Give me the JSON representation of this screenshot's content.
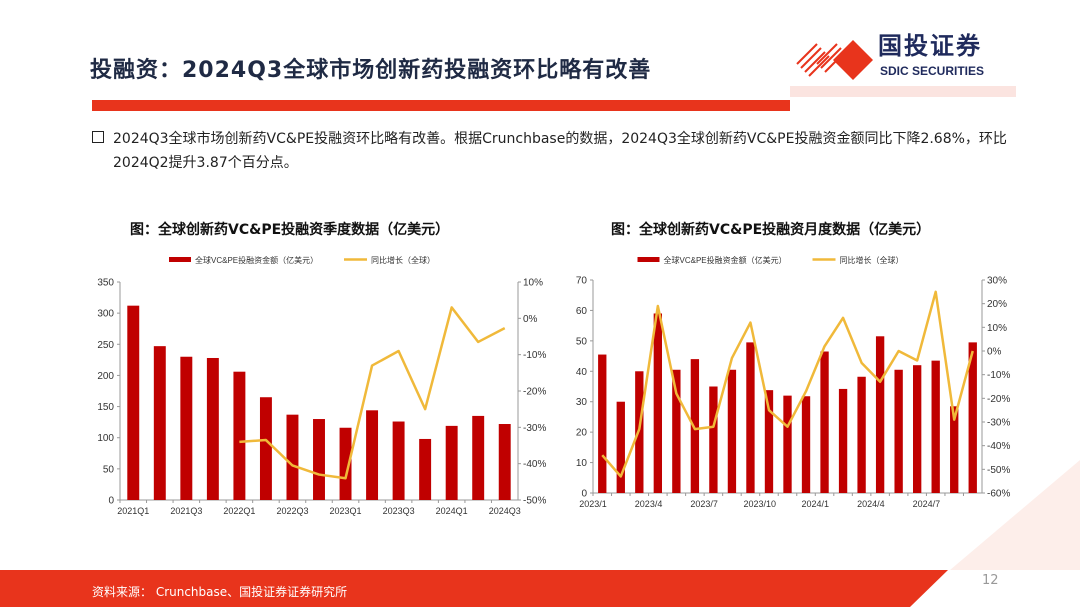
{
  "header": {
    "title": "投融资：2024Q3全球市场创新药投融资环比略有改善",
    "logo_cn": "国投证券",
    "logo_en": "SDIC SECURITIES"
  },
  "colors": {
    "accent": "#e8341c",
    "bar": "#c00000",
    "line": "#f0b93a",
    "title": "#1f2a44"
  },
  "summary": "2024Q3全球市场创新药VC&PE投融资环比略有改善。根据Crunchbase的数据，2024Q3全球创新药VC&PE投融资金额同比下降2.68%，环比2024Q2提升3.87个百分点。",
  "chart_data": [
    {
      "type": "bar+line",
      "title": "图：全球创新药VC&PE投融资季度数据（亿美元）",
      "categories": [
        "2021Q1",
        "2021Q2",
        "2021Q3",
        "2021Q4",
        "2022Q1",
        "2022Q2",
        "2022Q3",
        "2022Q4",
        "2023Q1",
        "2023Q2",
        "2023Q3",
        "2023Q4",
        "2024Q1",
        "2024Q2",
        "2024Q3"
      ],
      "xtick_labels": [
        "2021Q1",
        "",
        "2021Q3",
        "",
        "2022Q1",
        "",
        "2022Q3",
        "",
        "2023Q1",
        "",
        "2023Q3",
        "",
        "2024Q1",
        "",
        "2024Q3"
      ],
      "series": [
        {
          "name": "全球VC&PE投融资金额（亿美元）",
          "type": "bar",
          "axis": "left",
          "values": [
            312,
            247,
            230,
            228,
            206,
            165,
            137,
            130,
            116,
            144,
            126,
            98,
            119,
            135,
            122
          ]
        },
        {
          "name": "同比增长（全球）",
          "type": "line",
          "axis": "right",
          "values": [
            null,
            null,
            null,
            null,
            -34,
            -33.5,
            -40.5,
            -43,
            -44,
            -13,
            -9,
            -25,
            3,
            -6.5,
            -2.7
          ]
        }
      ],
      "ylim_left": [
        0,
        350
      ],
      "yticks_left": [
        "0",
        "50",
        "100",
        "150",
        "200",
        "250",
        "300",
        "350"
      ],
      "ylim_right": [
        -50,
        10
      ],
      "yticks_right": [
        "-50%",
        "-40%",
        "-30%",
        "-20%",
        "-10%",
        "0%",
        "10%"
      ],
      "legend": "top",
      "grid": false
    },
    {
      "type": "bar+line",
      "title": "图：全球创新药VC&PE投融资月度数据（亿美元）",
      "categories": [
        "2023/1",
        "2023/2",
        "2023/3",
        "2023/4",
        "2023/5",
        "2023/6",
        "2023/7",
        "2023/8",
        "2023/9",
        "2023/10",
        "2023/11",
        "2023/12",
        "2024/1",
        "2024/2",
        "2024/3",
        "2024/4",
        "2024/5",
        "2024/6",
        "2024/7",
        "2024/8",
        "2024/9"
      ],
      "xtick_labels": [
        "2023/1",
        "",
        "",
        "2023/4",
        "",
        "",
        "2023/7",
        "",
        "",
        "2023/10",
        "",
        "",
        "2024/1",
        "",
        "",
        "2024/4",
        "",
        "",
        "2024/7",
        "",
        ""
      ],
      "series": [
        {
          "name": "全球VC&PE投融资金额（亿美元）",
          "type": "bar",
          "axis": "left",
          "values": [
            45.5,
            30,
            40,
            59,
            40.5,
            44,
            35,
            40.5,
            49.5,
            33.8,
            32,
            31.8,
            46.5,
            34.2,
            38.2,
            51.5,
            40.5,
            42,
            43.5,
            28.5,
            49.5
          ]
        },
        {
          "name": "同比增长（全球）",
          "type": "line",
          "axis": "right",
          "values": [
            -44,
            -53,
            -33,
            19,
            -18,
            -33,
            -32,
            -3,
            12,
            -25,
            -32,
            -17,
            2,
            14,
            -5,
            -13,
            0,
            -4,
            25,
            -29,
            0
          ]
        }
      ],
      "ylim_left": [
        0,
        70
      ],
      "yticks_left": [
        "0",
        "10",
        "20",
        "30",
        "40",
        "50",
        "60",
        "70"
      ],
      "ylim_right": [
        -60,
        30
      ],
      "yticks_right": [
        "-60%",
        "-50%",
        "-40%",
        "-30%",
        "-20%",
        "-10%",
        "0%",
        "10%",
        "20%",
        "30%"
      ],
      "legend": "top",
      "grid": false
    }
  ],
  "footer": {
    "source": "资料来源： Crunchbase、国投证券证券研究所",
    "page": "12"
  }
}
